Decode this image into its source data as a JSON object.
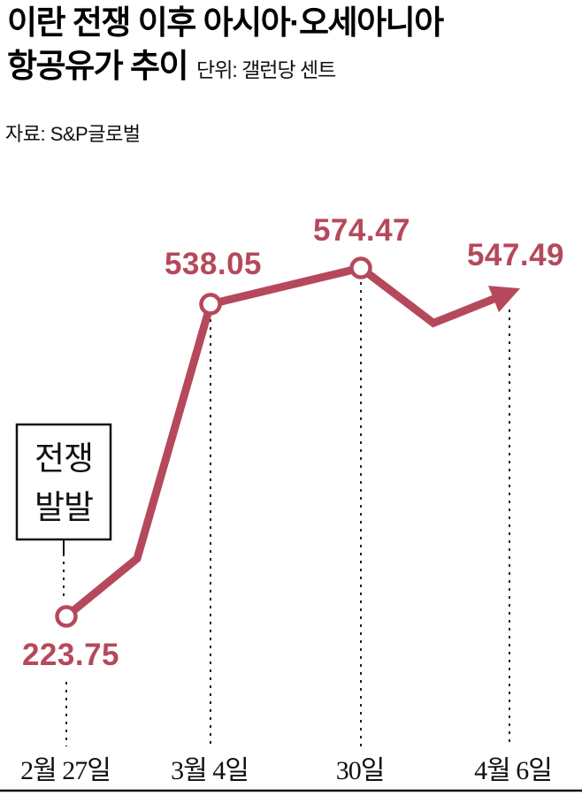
{
  "header": {
    "title_line1": "이란 전쟁 이후 아시아·오세아니아",
    "title_line2": "항공유가 추이",
    "unit": "단위: 갤런당 센트",
    "source": "자료: S&P글로벌"
  },
  "annotation": {
    "line1": "전쟁",
    "line2": "발발"
  },
  "colors": {
    "line": "#b5495b",
    "axis": "#111111"
  },
  "chart_data": {
    "type": "line",
    "title": "이란 전쟁 이후 아시아·오세아니아 항공유가 추이",
    "unit": "갤런당 센트",
    "source": "S&P글로벌",
    "categories": [
      "2월 27일",
      "3월 4일",
      "30일",
      "4월 6일"
    ],
    "values": [
      223.75,
      538.05,
      574.47,
      547.49
    ],
    "value_labels": [
      "223.75",
      "538.05",
      "574.47",
      "547.49"
    ],
    "shape_bend_values": [
      282,
      519
    ],
    "annotation": {
      "text": "전쟁 발발",
      "at_category": "2월 27일"
    },
    "ylim": [
      200,
      620
    ],
    "grid": false,
    "legend": false,
    "marker_points": [
      "2월 27일",
      "3월 4일",
      "30일"
    ],
    "arrow_end": true
  }
}
